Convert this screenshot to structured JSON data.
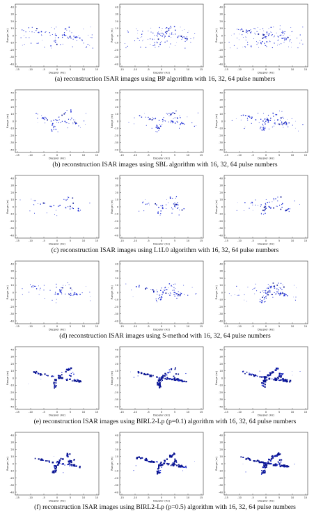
{
  "figure": {
    "rows": [
      {
        "caption": "(a) reconstruction ISAR images using BP algorithm with 16, 32, 64 pulse numbers",
        "style": "noisy"
      },
      {
        "caption": "(b) reconstruction ISAR images using SBL algorithm with 16, 32, 64 pulse numbers",
        "style": "medium"
      },
      {
        "caption": "(c) reconstruction ISAR images using L1L0 algorithm with 16, 32, 64 pulse numbers",
        "style": "sparse"
      },
      {
        "caption": "(d) reconstruction ISAR images using S-method with 16, 32, 64 pulse numbers",
        "style": "medium"
      },
      {
        "caption": "(e) reconstruction ISAR images using BIRL2-Lp (p=0.1) algorithm with 16, 32, 64 pulse numbers",
        "style": "dense"
      },
      {
        "caption": "(f) reconstruction ISAR images using BIRL2-Lp (p=0.5) algorithm with 16, 32, 64 pulse numbers",
        "style": "dense"
      }
    ],
    "pulse_numbers": [
      16,
      32,
      64
    ]
  },
  "axes": {
    "xlabel": "Doppler (Hz)",
    "ylabel": "Range (m)",
    "x_ticks": [
      "-15",
      "-10",
      "-5",
      "0",
      "5",
      "10",
      "15"
    ],
    "y_ticks": [
      "40",
      "30",
      "20",
      "10",
      "0",
      "-10",
      "-20",
      "-30",
      "-40"
    ]
  },
  "colors": {
    "scatter": "#1f2fd6",
    "scatter_dark": "#0a1490",
    "frame": "#333333"
  }
}
